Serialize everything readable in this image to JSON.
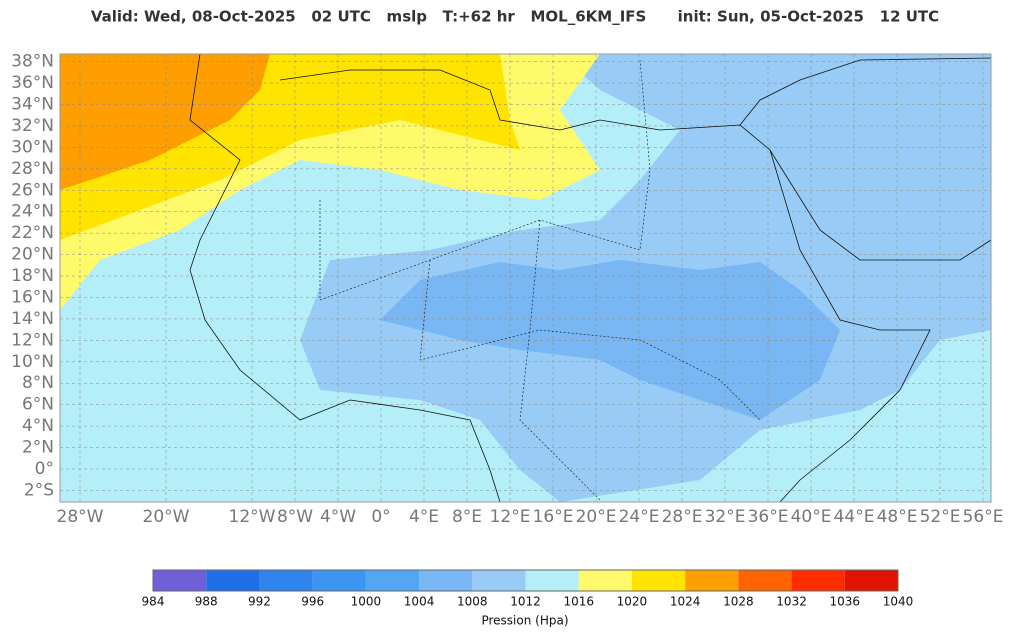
{
  "title": "Valid: Wed, 08-Oct-2025   02 UTC   mslp   T:+62 hr   MOL_6KM_IFS      init: Sun, 05-Oct-2025   12 UTC",
  "lat_ticks": [
    {
      "value": 38,
      "label": "38°N"
    },
    {
      "value": 36,
      "label": "36°N"
    },
    {
      "value": 34,
      "label": "34°N"
    },
    {
      "value": 32,
      "label": "32°N"
    },
    {
      "value": 30,
      "label": "30°N"
    },
    {
      "value": 28,
      "label": "28°N"
    },
    {
      "value": 26,
      "label": "26°N"
    },
    {
      "value": 24,
      "label": "24°N"
    },
    {
      "value": 22,
      "label": "22°N"
    },
    {
      "value": 20,
      "label": "20°N"
    },
    {
      "value": 18,
      "label": "18°N"
    },
    {
      "value": 16,
      "label": "16°N"
    },
    {
      "value": 14,
      "label": "14°N"
    },
    {
      "value": 12,
      "label": "12°N"
    },
    {
      "value": 10,
      "label": "10°N"
    },
    {
      "value": 8,
      "label": "8°N"
    },
    {
      "value": 6,
      "label": "6°N"
    },
    {
      "value": 4,
      "label": "4°N"
    },
    {
      "value": 2,
      "label": "2°N"
    },
    {
      "value": 0,
      "label": "0°"
    },
    {
      "value": -2,
      "label": "2°S"
    }
  ],
  "lon_ticks": [
    {
      "value": -28,
      "label": "28°W"
    },
    {
      "value": -20,
      "label": "20°W"
    },
    {
      "value": -12,
      "label": "12°W"
    },
    {
      "value": -8,
      "label": "8°W"
    },
    {
      "value": -4,
      "label": "4°W"
    },
    {
      "value": 0,
      "label": "0°"
    },
    {
      "value": 4,
      "label": "4°E"
    },
    {
      "value": 8,
      "label": "8°E"
    },
    {
      "value": 12,
      "label": "12°E"
    },
    {
      "value": 16,
      "label": "16°E"
    },
    {
      "value": 20,
      "label": "20°E"
    },
    {
      "value": 24,
      "label": "24°E"
    },
    {
      "value": 28,
      "label": "28°E"
    },
    {
      "value": 32,
      "label": "32°E"
    },
    {
      "value": 36,
      "label": "36°E"
    },
    {
      "value": 40,
      "label": "40°E"
    },
    {
      "value": 44,
      "label": "44°E"
    },
    {
      "value": 48,
      "label": "48°E"
    },
    {
      "value": 52,
      "label": "52°E"
    },
    {
      "value": 56,
      "label": "56°E"
    }
  ],
  "colorbar": {
    "ticks": [
      984,
      988,
      992,
      996,
      1000,
      1004,
      1008,
      1012,
      1016,
      1020,
      1024,
      1028,
      1032,
      1036,
      1040
    ],
    "colors": [
      "#7060d8",
      "#1e6ee8",
      "#2f84ee",
      "#3c95f0",
      "#52a6f2",
      "#78b6f4",
      "#98ccf6",
      "#b4eef8",
      "#fffa6a",
      "#ffe400",
      "#ff9e00",
      "#ff6400",
      "#ff2c00",
      "#e01400"
    ],
    "label": "Pression (Hpa)"
  }
}
